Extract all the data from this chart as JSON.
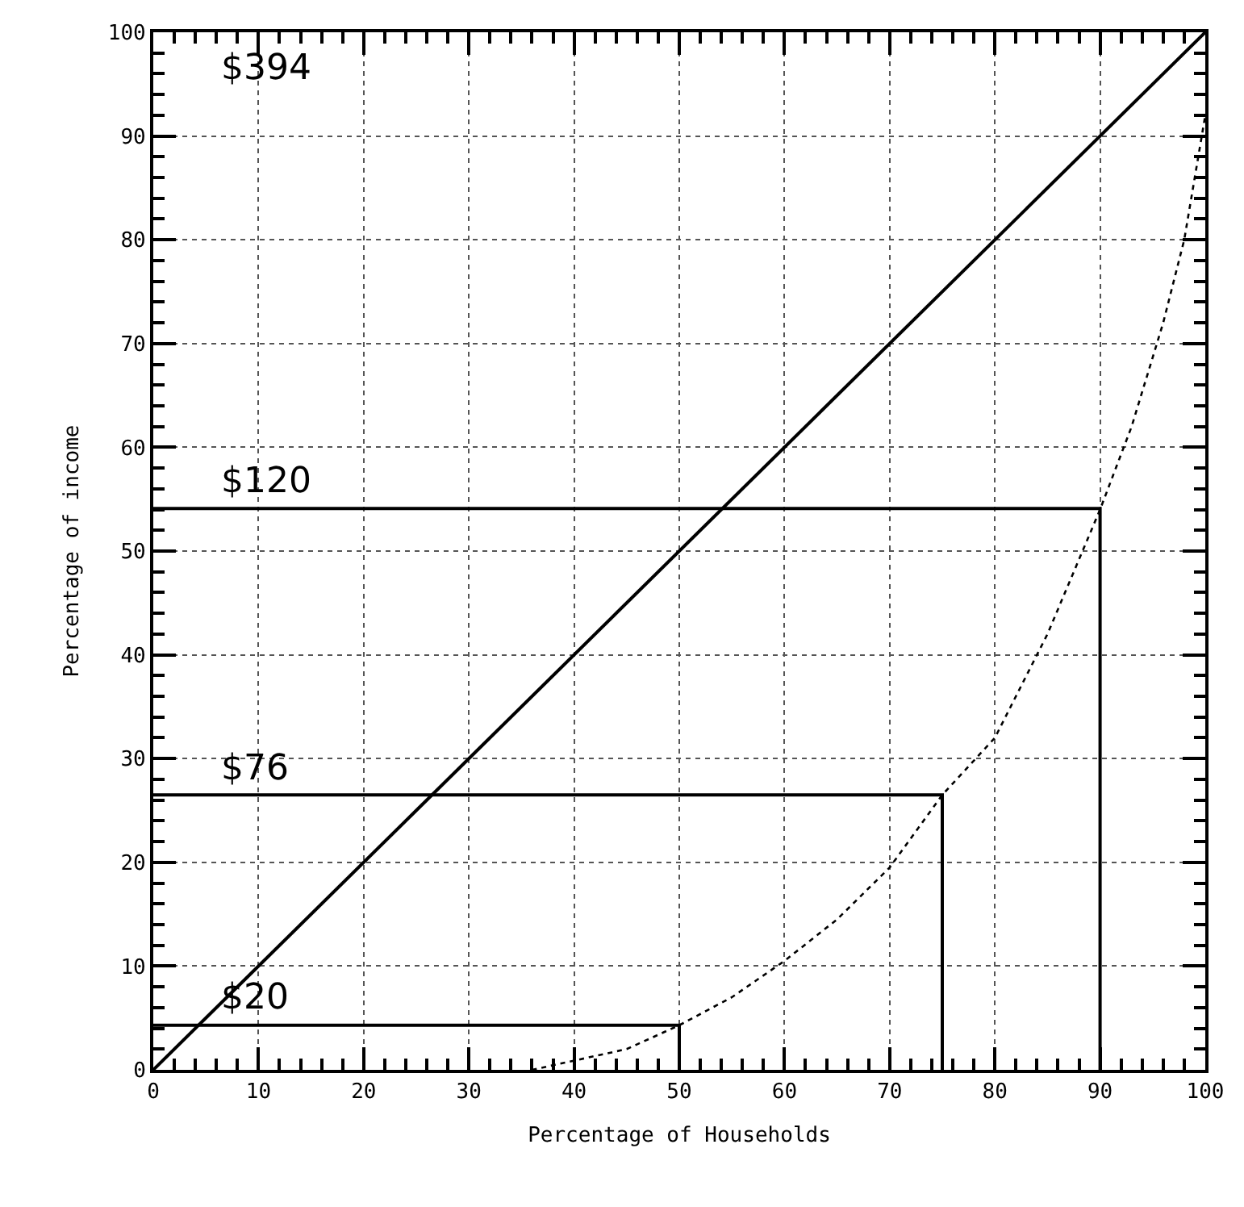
{
  "chart_data": {
    "type": "line",
    "xlabel": "Percentage of Households",
    "ylabel": "Percentage of income",
    "xlim": [
      0,
      100
    ],
    "ylim": [
      0,
      100
    ],
    "xticks": [
      0,
      10,
      20,
      30,
      40,
      50,
      60,
      70,
      80,
      90,
      100
    ],
    "yticks": [
      0,
      10,
      20,
      30,
      40,
      50,
      60,
      70,
      80,
      90,
      100
    ],
    "grid": true,
    "legend": false,
    "marker": "none",
    "series": [
      {
        "color": "#000000",
        "line_style": "solid",
        "x": [
          0,
          100
        ],
        "values": [
          0,
          100
        ]
      },
      {
        "color": "#000000",
        "line_style": "dotted",
        "x": [
          36,
          45,
          50,
          55,
          60,
          65,
          70,
          75,
          80,
          85,
          90,
          93,
          96,
          98,
          100
        ],
        "values": [
          0,
          2,
          4.3,
          7,
          10.5,
          14.5,
          19.5,
          26.5,
          32,
          42,
          54,
          62,
          72,
          80,
          92
        ]
      },
      {
        "name": "$20",
        "color": "#000000",
        "line_style": "solid",
        "x": [
          0,
          50,
          50
        ],
        "values": [
          4.3,
          4.3,
          0
        ]
      },
      {
        "name": "$76",
        "color": "#000000",
        "line_style": "solid",
        "x": [
          0,
          75,
          75
        ],
        "values": [
          26.5,
          26.5,
          0
        ]
      },
      {
        "name": "$120",
        "color": "#000000",
        "line_style": "solid",
        "x": [
          0,
          90,
          90
        ],
        "values": [
          54.1,
          54.1,
          0
        ]
      }
    ],
    "annotations": [
      "$394"
    ]
  }
}
